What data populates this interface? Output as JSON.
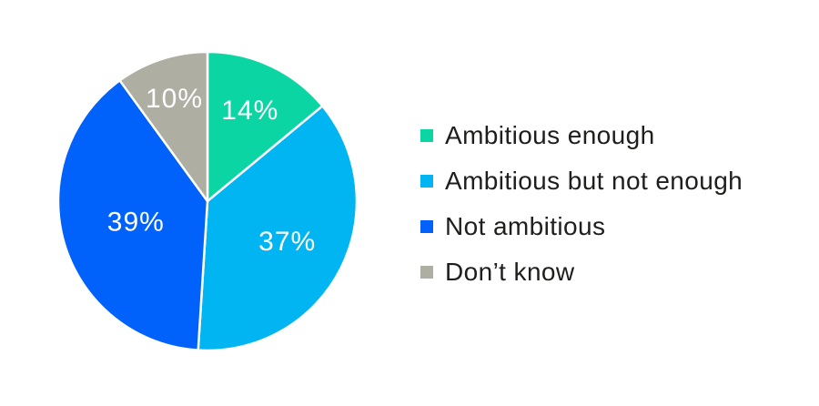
{
  "chart_data": {
    "type": "pie",
    "title": "",
    "legend_position": "right",
    "start_angle_deg": 0,
    "direction": "clockwise",
    "label_color": "#ffffff",
    "legend_text_color": "#1e1e1c",
    "separator_color": "#ffffff",
    "background_color": "#ffffff",
    "slices": [
      {
        "label": "Ambitious enough",
        "value": 14,
        "value_label": "14%",
        "color": "#0bd5a3",
        "label_r": 0.67
      },
      {
        "label": "Ambitious but not enough",
        "value": 37,
        "value_label": "37%",
        "color": "#00b5f2",
        "label_r": 0.6
      },
      {
        "label": "Not ambitious",
        "value": 39,
        "value_label": "39%",
        "color": "#0062fa",
        "label_r": 0.5
      },
      {
        "label": "Don’t know",
        "value": 10,
        "value_label": "10%",
        "color": "#aeaea3",
        "label_r": 0.72
      }
    ]
  }
}
